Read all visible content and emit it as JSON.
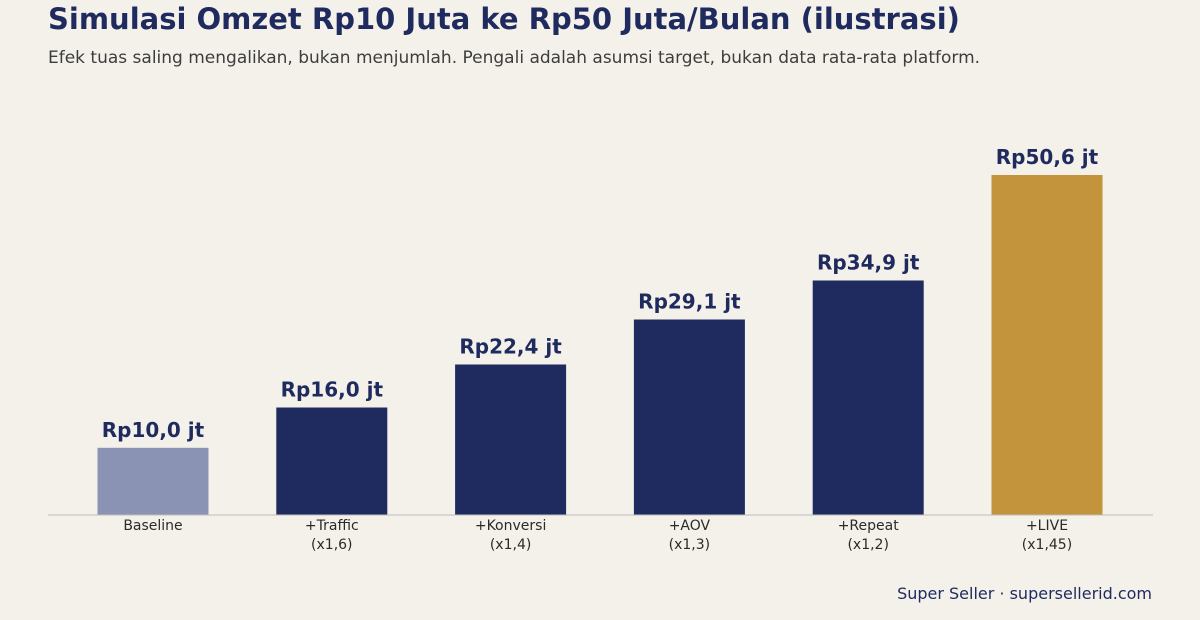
{
  "title": "Simulasi Omzet Rp10 Juta ke Rp50 Juta/Bulan (ilustrasi)",
  "subtitle": "Efek tuas saling mengalikan, bukan menjumlah. Pengali adalah asumsi target, bukan data rata-rata platform.",
  "footer": "Super Seller · supersellerid.com",
  "colors": {
    "baseline": "#8b93b5",
    "step": "#1f2a5e",
    "final": "#c4943c",
    "value_label": "#1f2a5e",
    "axis": "#bdbdbd",
    "category_label": "#2a2a2a"
  },
  "chart_data": {
    "type": "bar",
    "categories": [
      [
        "Baseline"
      ],
      [
        "+Traffic",
        "(x1,6)"
      ],
      [
        "+Konversi",
        "(x1,4)"
      ],
      [
        "+AOV",
        "(x1,3)"
      ],
      [
        "+Repeat",
        "(x1,2)"
      ],
      [
        "+LIVE",
        "(x1,45)"
      ]
    ],
    "values": [
      10.0,
      16.0,
      22.4,
      29.1,
      34.9,
      50.6
    ],
    "value_labels": [
      "Rp10,0 jt",
      "Rp16,0 jt",
      "Rp22,4 jt",
      "Rp29,1 jt",
      "Rp34,9 jt",
      "Rp50,6 jt"
    ],
    "ylim": [
      0,
      50.6
    ],
    "grid": false,
    "legend": "none"
  }
}
